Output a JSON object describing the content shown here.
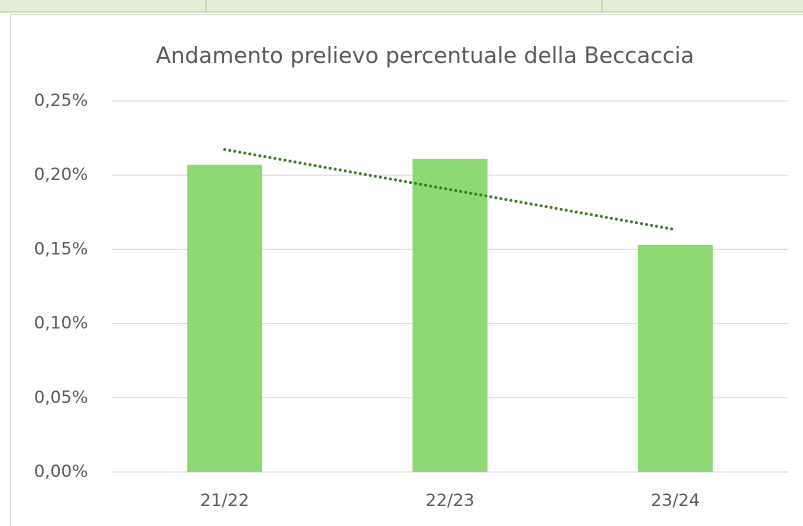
{
  "chart_data": {
    "type": "bar",
    "title": "Andamento prelievo percentuale della Beccaccia",
    "categories": [
      "21/22",
      "22/23",
      "23/24"
    ],
    "values": [
      0.207,
      0.211,
      0.153
    ],
    "color": "#8fd974",
    "ylim": [
      0,
      0.25
    ],
    "yticks": [
      {
        "value": 0,
        "label": "0,00%"
      },
      {
        "value": 0.05,
        "label": "0,05%"
      },
      {
        "value": 0.1,
        "label": "0,10%"
      },
      {
        "value": 0.15,
        "label": "0,15%"
      },
      {
        "value": 0.2,
        "label": "0,20%"
      },
      {
        "value": 0.25,
        "label": "0,25%"
      }
    ],
    "grid": true,
    "trendline": {
      "type": "linear",
      "color": "#3a7d22"
    }
  }
}
